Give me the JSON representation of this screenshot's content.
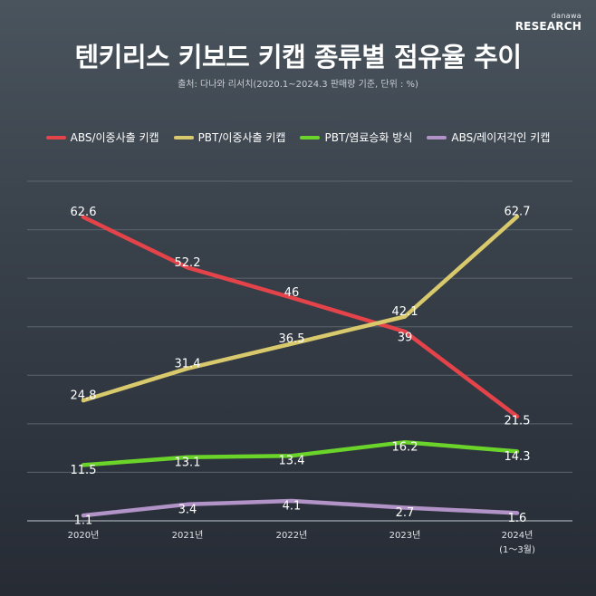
{
  "brand": {
    "top": "danawa",
    "bottom": "RESEARCH"
  },
  "title": "텐키리스 키보드 키캡 종류별 점유율 추이",
  "source": "출처: 다나와 리서치(2020.1~2024.3 판매량 기준, 단위 : %)",
  "chart_data": {
    "type": "line",
    "title": "텐키리스 키보드 키캡 종류별 점유율 추이",
    "categories": [
      "2020년",
      "2021년",
      "2022년",
      "2023년",
      "2024년"
    ],
    "category_notes": [
      "",
      "",
      "",
      "",
      "(1～3월)"
    ],
    "ylim": [
      0,
      70
    ],
    "grid": true,
    "legend_position": "top-center",
    "series": [
      {
        "name": "ABS/이중사출 키캡",
        "color": "#e5434a",
        "values": [
          62.6,
          52.2,
          46,
          39,
          21.5
        ]
      },
      {
        "name": "PBT/이중사출 키캡",
        "color": "#d8c96c",
        "values": [
          24.8,
          31.4,
          36.5,
          42.1,
          62.7
        ]
      },
      {
        "name": "PBT/염료승화 방식",
        "color": "#6bd42a",
        "values": [
          11.5,
          13.1,
          13.4,
          16.2,
          14.3
        ]
      },
      {
        "name": "ABS/레이저각인 키캡",
        "color": "#b193c8",
        "values": [
          1.1,
          3.4,
          4.1,
          2.7,
          1.6
        ]
      }
    ]
  }
}
